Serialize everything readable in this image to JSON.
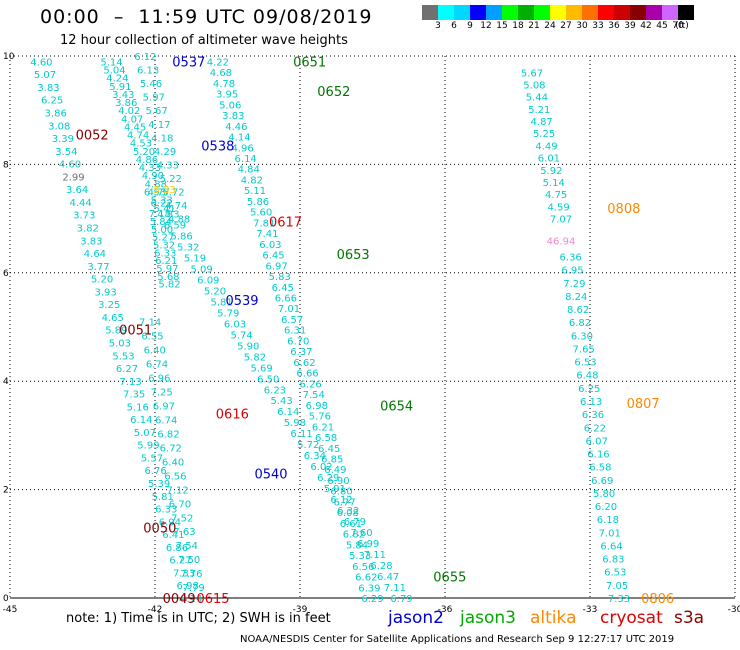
{
  "header": {
    "title": "00:00  –  11:59 UTC 09/08/2019",
    "subtitle": "12 hour collection of altimeter wave heights"
  },
  "legend": {
    "colors": [
      "#707070",
      "#00ffff",
      "#00d8ff",
      "#0000ff",
      "#00a0ff",
      "#00ff00",
      "#00b000",
      "#00ff00",
      "#ffff00",
      "#ffbb00",
      "#ff7000",
      "#ff0000",
      "#cc0000",
      "#880000",
      "#aa00aa",
      "#cc66ff",
      "#000000"
    ],
    "labels": [
      "3",
      "6",
      "9",
      "12",
      "15",
      "18",
      "21",
      "24",
      "27",
      "30",
      "33",
      "36",
      "39",
      "42",
      "45",
      "70",
      "(ft)"
    ]
  },
  "note": "note:  1) Time is in UTC;  2) SWH is in feet",
  "satellites": [
    {
      "name": "jason2",
      "color": "#0000cc"
    },
    {
      "name": "jason3",
      "color": "#00aa00"
    },
    {
      "name": "altika",
      "color": "#ff8800"
    },
    {
      "name": "cryosat",
      "color": "#dd0000"
    },
    {
      "name": "s3a",
      "color": "#880000"
    }
  ],
  "footer": "NOAA/NESDIS Center for Satellite Applications and Research    Sep  9 12:27:17 UTC 2019",
  "chart_data": {
    "type": "scatter",
    "xlim": [
      -45,
      -30
    ],
    "ylim": [
      0,
      10
    ],
    "x_ticks": [
      "-45",
      "-42",
      "-39",
      "-36",
      "-33",
      "-30"
    ],
    "y_ticks": [
      "0",
      "2",
      "4",
      "6",
      "8",
      "10"
    ],
    "grid": true,
    "pass_labels": [
      {
        "text": "0537",
        "x": -41.3,
        "y": 9.9,
        "color": "#0000cc"
      },
      {
        "text": "0651",
        "x": -38.8,
        "y": 9.9,
        "color": "#007700"
      },
      {
        "text": "0652",
        "x": -38.3,
        "y": 9.35,
        "color": "#007700"
      },
      {
        "text": "0052",
        "x": -43.3,
        "y": 8.55,
        "color": "#880000"
      },
      {
        "text": "0538",
        "x": -40.7,
        "y": 8.35,
        "color": "#0000cc"
      },
      {
        "text": "0617",
        "x": -39.3,
        "y": 6.95,
        "color": "#dd0000"
      },
      {
        "text": "0653",
        "x": -37.9,
        "y": 6.35,
        "color": "#007700"
      },
      {
        "text": "0808",
        "x": -32.3,
        "y": 7.2,
        "color": "#ff8800"
      },
      {
        "text": "0539",
        "x": -40.2,
        "y": 5.5,
        "color": "#0000cc"
      },
      {
        "text": "0051",
        "x": -42.4,
        "y": 4.95,
        "color": "#880000"
      },
      {
        "text": "0654",
        "x": -37.0,
        "y": 3.55,
        "color": "#007700"
      },
      {
        "text": "0807",
        "x": -31.9,
        "y": 3.6,
        "color": "#ff8800"
      },
      {
        "text": "0616",
        "x": -40.4,
        "y": 3.4,
        "color": "#dd0000"
      },
      {
        "text": "0540",
        "x": -39.6,
        "y": 2.3,
        "color": "#0000cc"
      },
      {
        "text": "0050",
        "x": -41.9,
        "y": 1.3,
        "color": "#880000"
      },
      {
        "text": "0655",
        "x": -35.9,
        "y": 0.4,
        "color": "#007700"
      },
      {
        "text": "0049",
        "x": -41.5,
        "y": 0.0,
        "color": "#880000"
      },
      {
        "text": "0615",
        "x": -40.8,
        "y": 0.0,
        "color": "#dd0000"
      },
      {
        "text": "0806",
        "x": -31.6,
        "y": 0.0,
        "color": "#ff8800"
      }
    ],
    "tracks": [
      {
        "name": "0052",
        "color": "#00cccc",
        "x0": -44.35,
        "y0": 9.9,
        "x1": -41.25,
        "y1": 0.0,
        "values": [
          "4.60",
          "5.07",
          "3.83",
          "6.25",
          "3.86",
          "3.08",
          "3.39",
          "3.54",
          "4.60",
          "2.99",
          "3.64",
          "4.44",
          "3.73",
          "3.82",
          "3.83",
          "4.64",
          "3.77",
          "5.20",
          "3.93",
          "3.25",
          "4.65",
          "5.89",
          "5.03",
          "5.53",
          "6.27",
          "7.13",
          "7.35",
          "5.16",
          "6.14",
          "5.07",
          "5.99",
          "5.57",
          "6.76",
          "5.39",
          "5.81",
          "6.33",
          "6.94",
          "6.41",
          "6.86",
          "6.27",
          "7.33",
          "6.98",
          "8.14"
        ]
      },
      {
        "name": "0537",
        "color": "#00cccc",
        "x0": -42.9,
        "y0": 9.9,
        "x1": -41.8,
        "y1": 7.2,
        "values": [
          "5.14",
          "5.04",
          "4.24",
          "5.91",
          "3.43",
          "3.86",
          "4.02",
          "4.07",
          "4.45",
          "4.74",
          "4.53",
          "5.20",
          "4.86",
          "4.33",
          "4.90",
          "4.88",
          "4.77",
          "5.33",
          "5.41"
        ]
      },
      {
        "name": "0538",
        "color": "#00cccc",
        "x0": -42.2,
        "y0": 10.0,
        "x1": -41.5,
        "y1": 7.0,
        "values": [
          "6.12",
          "6.13",
          "5.46",
          "5.97",
          "5.67",
          "4.17",
          "4.18",
          "4.29",
          "4.33",
          "5.22",
          "5.72",
          "4.74",
          "4.88"
        ]
      },
      {
        "name": "0617",
        "color": "#00cccc",
        "x0": -42.0,
        "y0": 7.5,
        "x1": -36.9,
        "y1": 0.0,
        "values": [
          "6.53",
          "6.22",
          "4.83",
          "6.59",
          "5.86",
          "5.32",
          "5.19",
          "5.09",
          "6.09",
          "5.20",
          "5.81",
          "5.79",
          "6.03",
          "5.74",
          "5.90",
          "5.82",
          "5.69",
          "6.50",
          "6.23",
          "5.43",
          "6.14",
          "5.98",
          "6.11",
          "5.72",
          "6.34",
          "6.02",
          "6.29",
          "5.91",
          "6.12",
          "6.32",
          "6.79",
          "7.60",
          "6.99",
          "7.11",
          "6.28",
          "6.47",
          "7.11",
          "6.79"
        ]
      },
      {
        "name": "0617b",
        "color": "#00cccc",
        "x0": -41.9,
        "y0": 7.1,
        "x1": -41.7,
        "y1": 5.8,
        "values": [
          "7.18",
          "5.84",
          "5.00",
          "5.27",
          "5.32",
          "6.33",
          "6.21",
          "5.97",
          "5.68",
          "5.82"
        ]
      },
      {
        "name": "0539",
        "color": "#00cccc",
        "x0": -42.1,
        "y0": 5.1,
        "x1": -41.2,
        "y1": 0.2,
        "values": [
          "7.14",
          "6.55",
          "6.40",
          "6.74",
          "6.96",
          "7.25",
          "6.97",
          "6.74",
          "6.82",
          "6.72",
          "6.40",
          "6.56",
          "7.12",
          "6.70",
          "7.52",
          "7.63",
          "7.54",
          "7.50",
          "7.76",
          "7.79"
        ]
      },
      {
        "name": "0651",
        "color": "#00cccc",
        "x0": -40.7,
        "y0": 9.9,
        "x1": -37.5,
        "y1": 0.0,
        "values": [
          "4.22",
          "4.68",
          "4.78",
          "3.95",
          "5.06",
          "3.83",
          "4.46",
          "4.14",
          "4.96",
          "6.14",
          "4.84",
          "4.82",
          "5.11",
          "5.86",
          "5.60",
          "7.81",
          "7.41",
          "6.03",
          "6.45",
          "6.97",
          "5.83",
          "6.45",
          "6.66",
          "7.01",
          "6.57",
          "6.31",
          "6.70",
          "6.37",
          "6.62",
          "6.66",
          "6.26",
          "7.54",
          "6.98",
          "5.76",
          "6.21",
          "6.58",
          "6.45",
          "6.85",
          "6.49",
          "6.90",
          "6.80",
          "6.77",
          "6.08",
          "6.61",
          "6.82",
          "5.84",
          "5.33",
          "6.56",
          "6.62",
          "6.39",
          "6.29"
        ]
      },
      {
        "name": "0808",
        "color": "#00cccc",
        "x0": -34.2,
        "y0": 9.7,
        "x1": -33.6,
        "y1": 7.0,
        "values": [
          "5.67",
          "5.08",
          "5.44",
          "5.21",
          "4.87",
          "5.25",
          "4.49",
          "6.01",
          "5.92",
          "5.14",
          "4.75",
          "4.59",
          "7.07"
        ]
      },
      {
        "name": "0807",
        "color": "#00cccc",
        "x0": -33.4,
        "y0": 6.3,
        "x1": -32.4,
        "y1": 0.0,
        "values": [
          "6.36",
          "6.95",
          "7.29",
          "8.24",
          "8.62",
          "6.82",
          "6.30",
          "7.65",
          "6.53",
          "6.48",
          "6.25",
          "6.13",
          "6.36",
          "6.22",
          "6.07",
          "6.16",
          "6.58",
          "6.69",
          "5.80",
          "6.20",
          "6.18",
          "7.01",
          "6.64",
          "6.83",
          "6.53",
          "7.05",
          "7.33"
        ]
      }
    ],
    "outliers": [
      {
        "text": "46.94",
        "x": -33.6,
        "y": 6.6,
        "color": "#ee88cc"
      },
      {
        "text": "5.33",
        "x": -41.8,
        "y": 7.55,
        "color": "#ffcc00"
      }
    ]
  }
}
